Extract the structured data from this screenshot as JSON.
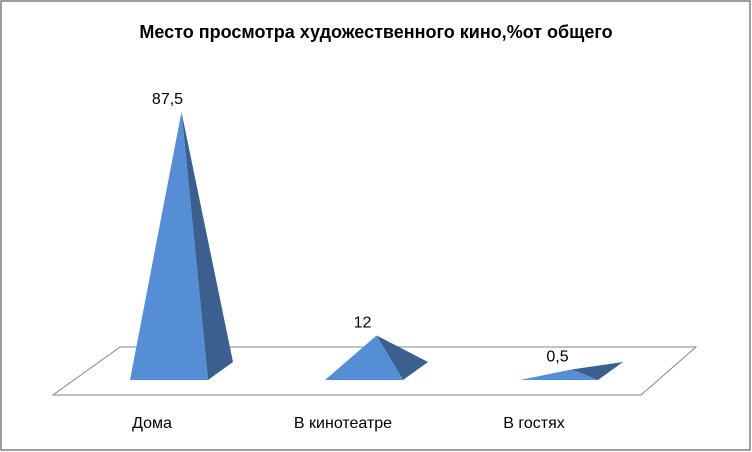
{
  "chart_data": {
    "type": "pyramid3d",
    "title": "Место просмотра художественного кино,%от общего",
    "categories": [
      "Дома",
      "В кинотеатре",
      "В гостях"
    ],
    "values": [
      87.5,
      12,
      0.5
    ],
    "value_labels": [
      "87,5",
      "12",
      "0,5"
    ],
    "color": "#558ed5"
  }
}
